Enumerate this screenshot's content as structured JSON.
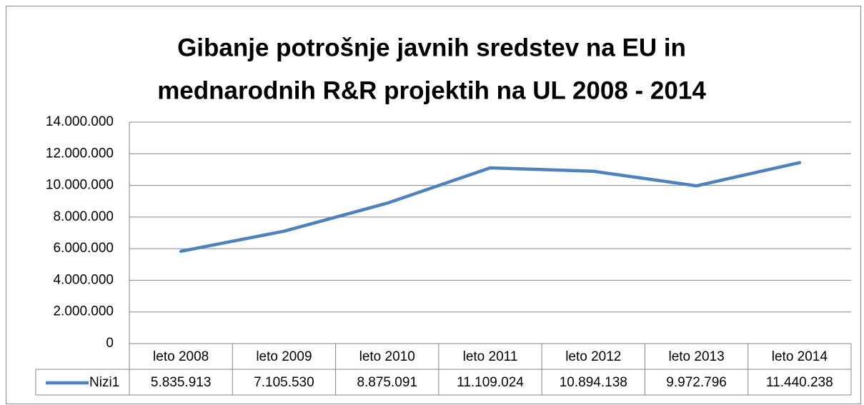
{
  "chart_data": {
    "type": "line",
    "title": [
      "Gibanje potrošnje javnih sredstev na EU in",
      "mednarodnih R&R projektih na UL 2008 - 2014"
    ],
    "categories": [
      "leto 2008",
      "leto 2009",
      "leto 2010",
      "leto 2011",
      "leto 2012",
      "leto 2013",
      "leto 2014"
    ],
    "series": [
      {
        "name": "Nizi1",
        "color": "#4f81bd",
        "values": [
          5835913,
          7105530,
          8875091,
          11109024,
          10894138,
          9972796,
          11440238
        ],
        "value_labels": [
          "5.835.913",
          "7.105.530",
          "8.875.091",
          "11.109.024",
          "10.894.138",
          "9.972.796",
          "11.440.238"
        ]
      }
    ],
    "ylim": [
      0,
      14000000
    ],
    "yticks": [
      0,
      {
        "value": 2000000,
        "label": "2.000.000"
      },
      {
        "value": 4000000,
        "label": "4.000.000"
      },
      {
        "value": 6000000,
        "label": "6.000.000"
      },
      {
        "value": 8000000,
        "label": "8.000.000"
      },
      {
        "value": 10000000,
        "label": "10.000.000"
      },
      {
        "value": 12000000,
        "label": "12.000.000"
      },
      {
        "value": 14000000,
        "label": "14.000.000"
      }
    ],
    "grid": true
  }
}
